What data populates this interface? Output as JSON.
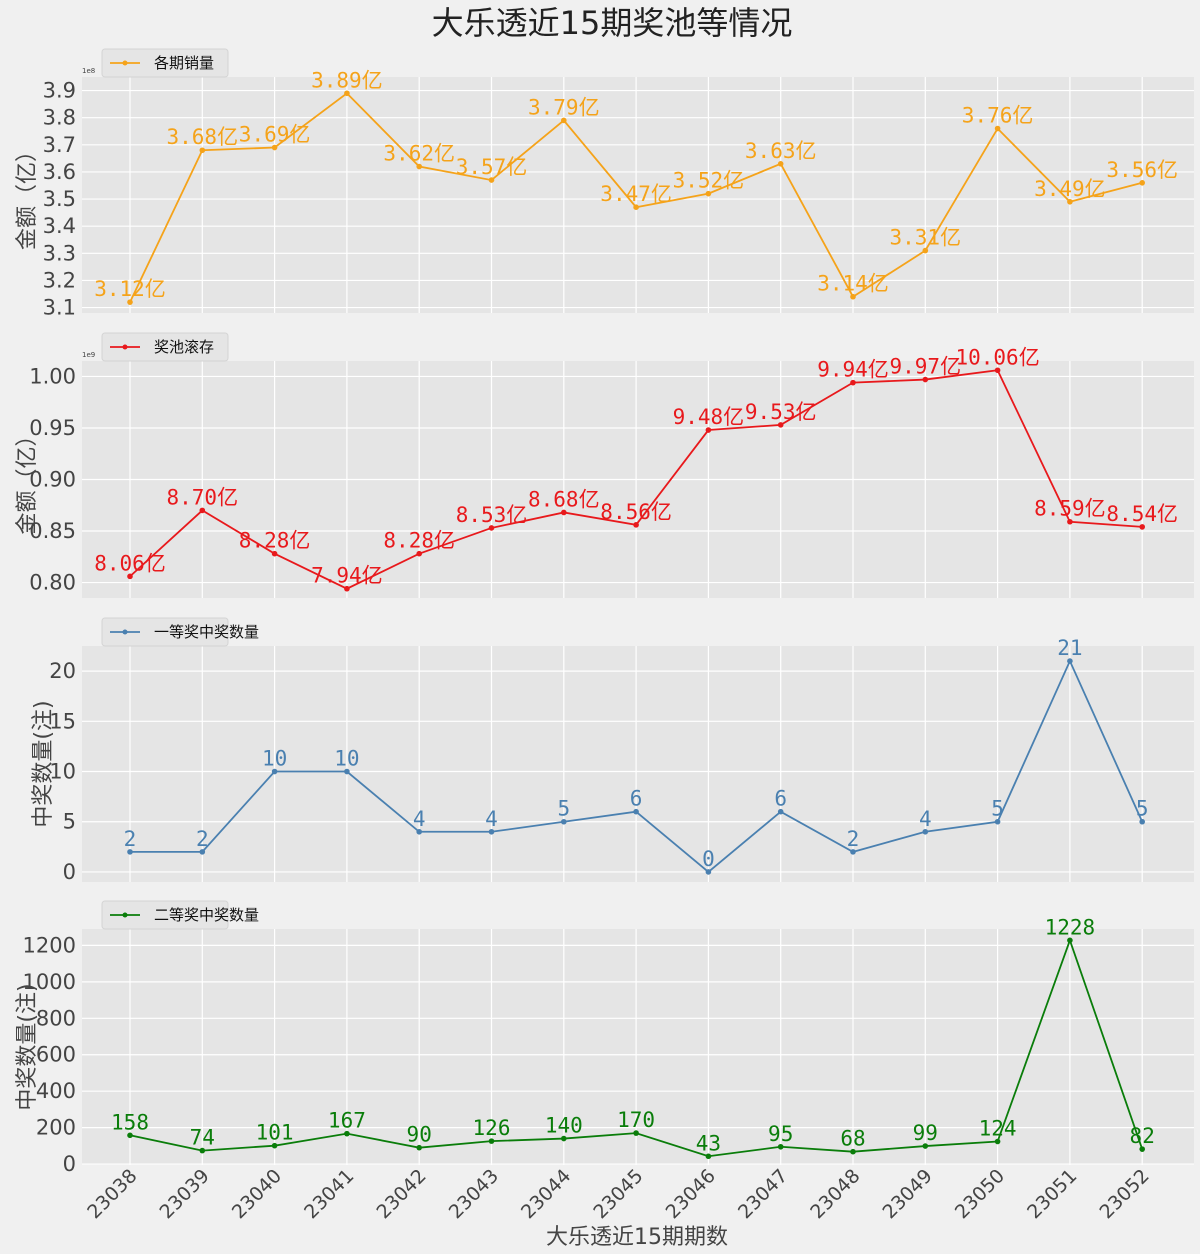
{
  "chart_title": "大乐透近15期奖池等情况",
  "chart_data": [
    {
      "type": "line",
      "title": "",
      "xlabel": "",
      "ylabel": "金额（亿）",
      "offset_text": "1e8",
      "ylim": [
        3.08,
        3.95
      ],
      "yticks": [
        3.1,
        3.2,
        3.3,
        3.4,
        3.5,
        3.6,
        3.7,
        3.8,
        3.9
      ],
      "ytick_labels": [
        "3.1",
        "3.2",
        "3.3",
        "3.4",
        "3.5",
        "3.6",
        "3.7",
        "3.8",
        "3.9"
      ],
      "categories": [
        "23038",
        "23039",
        "23040",
        "23041",
        "23042",
        "23043",
        "23044",
        "23045",
        "23046",
        "23047",
        "23048",
        "23049",
        "23050",
        "23051",
        "23052"
      ],
      "series": [
        {
          "name": "各期销量",
          "color": "#f5a31a",
          "values": [
            3.12,
            3.68,
            3.69,
            3.89,
            3.62,
            3.57,
            3.79,
            3.47,
            3.52,
            3.63,
            3.14,
            3.31,
            3.76,
            3.49,
            3.56
          ],
          "labels": [
            "3.12亿",
            "3.68亿",
            "3.69亿",
            "3.89亿",
            "3.62亿",
            "3.57亿",
            "3.79亿",
            "3.47亿",
            "3.52亿",
            "3.63亿",
            "3.14亿",
            "3.31亿",
            "3.76亿",
            "3.49亿",
            "3.56亿"
          ]
        }
      ],
      "legend": "top-left",
      "grid": true
    },
    {
      "type": "line",
      "title": "",
      "xlabel": "",
      "ylabel": "金额（亿）",
      "offset_text": "1e9",
      "ylim": [
        0.785,
        1.015
      ],
      "yticks": [
        0.8,
        0.85,
        0.9,
        0.95,
        1.0
      ],
      "ytick_labels": [
        "0.80",
        "0.85",
        "0.90",
        "0.95",
        "1.00"
      ],
      "categories": [
        "23038",
        "23039",
        "23040",
        "23041",
        "23042",
        "23043",
        "23044",
        "23045",
        "23046",
        "23047",
        "23048",
        "23049",
        "23050",
        "23051",
        "23052"
      ],
      "series": [
        {
          "name": "奖池滚存",
          "color": "#e8191c",
          "values": [
            0.806,
            0.87,
            0.828,
            0.794,
            0.828,
            0.853,
            0.868,
            0.856,
            0.948,
            0.953,
            0.994,
            0.997,
            1.006,
            0.859,
            0.854
          ],
          "labels": [
            "8.06亿",
            "8.70亿",
            "8.28亿",
            "7.94亿",
            "8.28亿",
            "8.53亿",
            "8.68亿",
            "8.56亿",
            "9.48亿",
            "9.53亿",
            "9.94亿",
            "9.97亿",
            "10.06亿",
            "8.59亿",
            "8.54亿"
          ]
        }
      ],
      "legend": "top-left",
      "grid": true
    },
    {
      "type": "line",
      "title": "",
      "xlabel": "",
      "ylabel": "中奖数量(注)",
      "ylim": [
        -1,
        22.5
      ],
      "yticks": [
        0,
        5,
        10,
        15,
        20
      ],
      "ytick_labels": [
        "0",
        "5",
        "10",
        "15",
        "20"
      ],
      "categories": [
        "23038",
        "23039",
        "23040",
        "23041",
        "23042",
        "23043",
        "23044",
        "23045",
        "23046",
        "23047",
        "23048",
        "23049",
        "23050",
        "23051",
        "23052"
      ],
      "series": [
        {
          "name": "一等奖中奖数量",
          "color": "#4a80b0",
          "values": [
            2,
            2,
            10,
            10,
            4,
            4,
            5,
            6,
            0,
            6,
            2,
            4,
            5,
            21,
            5
          ],
          "labels": [
            "2",
            "2",
            "10",
            "10",
            "4",
            "4",
            "5",
            "6",
            "0",
            "6",
            "2",
            "4",
            "5",
            "21",
            "5"
          ]
        }
      ],
      "legend": "top-left",
      "grid": true
    },
    {
      "type": "line",
      "title": "",
      "xlabel": "大乐透近15期期数",
      "ylabel": "中奖数量(注)",
      "ylim": [
        -5,
        1290
      ],
      "yticks": [
        0,
        200,
        400,
        600,
        800,
        1000,
        1200
      ],
      "ytick_labels": [
        "0",
        "200",
        "400",
        "600",
        "800",
        "1000",
        "1200"
      ],
      "categories": [
        "23038",
        "23039",
        "23040",
        "23041",
        "23042",
        "23043",
        "23044",
        "23045",
        "23046",
        "23047",
        "23048",
        "23049",
        "23050",
        "23051",
        "23052"
      ],
      "series": [
        {
          "name": "二等奖中奖数量",
          "color": "#0a7d0a",
          "values": [
            158,
            74,
            101,
            167,
            90,
            126,
            140,
            170,
            43,
            95,
            68,
            99,
            124,
            1228,
            82
          ],
          "labels": [
            "158",
            "74",
            "101",
            "167",
            "90",
            "126",
            "140",
            "170",
            "43",
            "95",
            "68",
            "99",
            "124",
            "1228",
            "82"
          ]
        }
      ],
      "legend": "top-left",
      "grid": true
    }
  ]
}
